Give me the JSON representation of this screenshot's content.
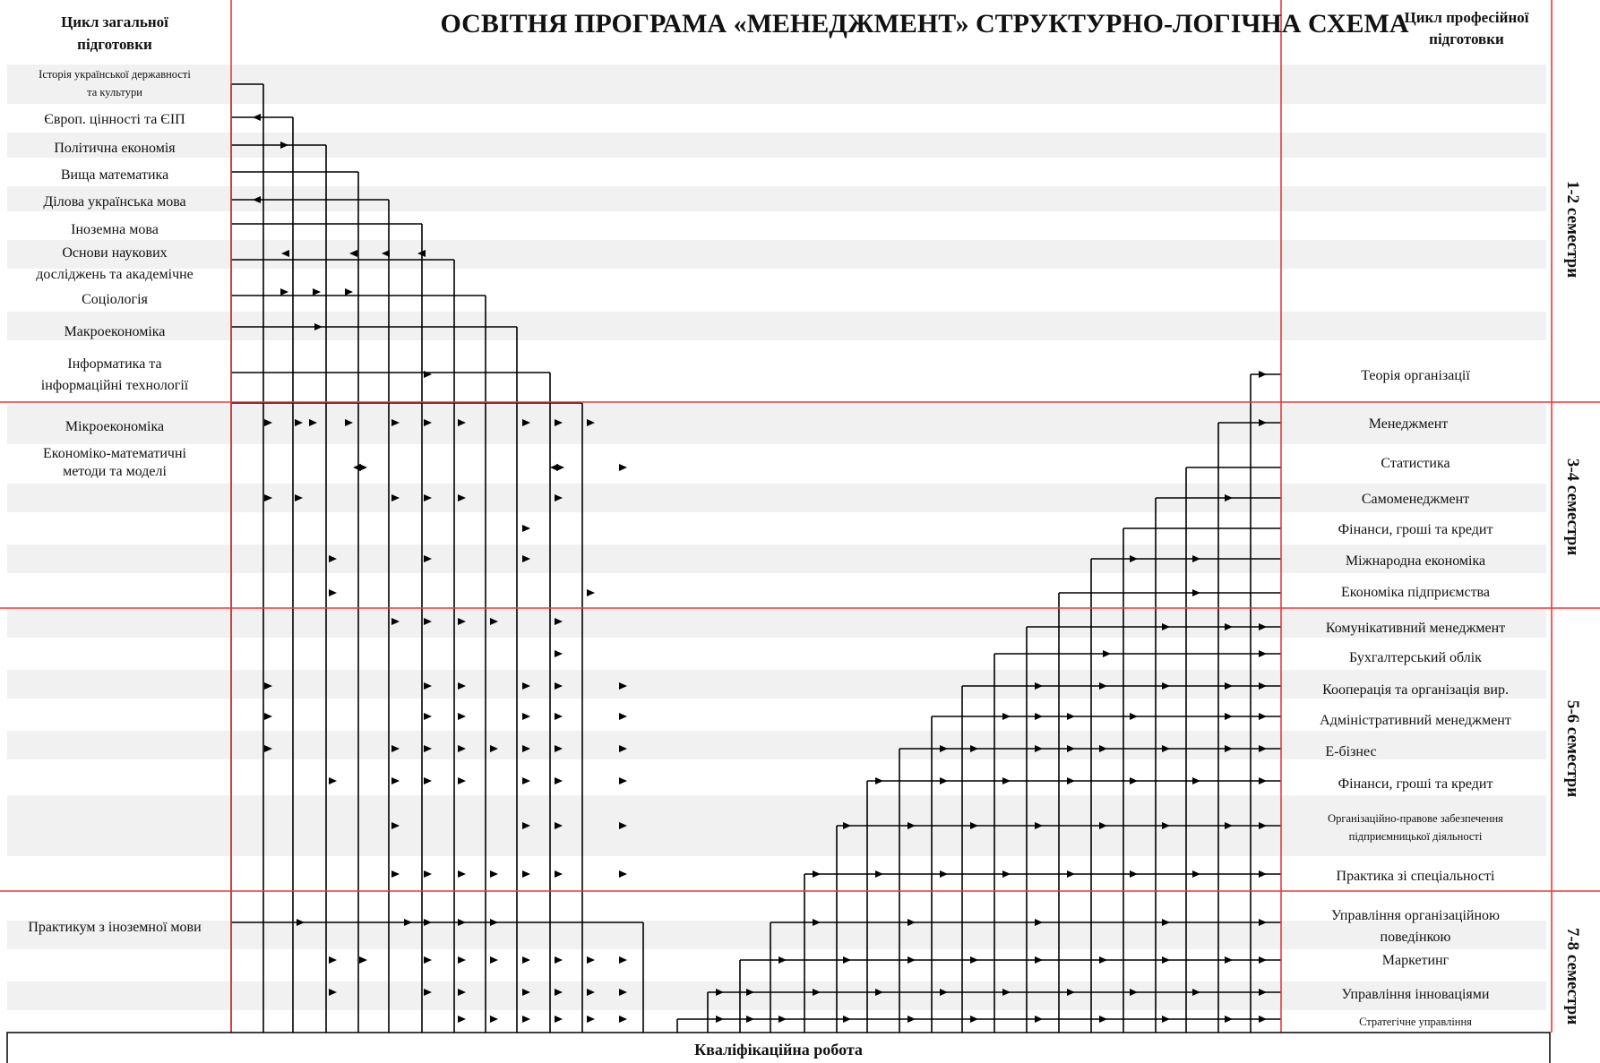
{
  "title": "ОСВІТНЯ ПРОГРАМА «МЕНЕДЖМЕНТ» СТРУКТУРНО-ЛОГІЧНА СХЕМА",
  "left_header": [
    "Цикл загальної",
    "підготовки"
  ],
  "right_header": [
    "Цикл професійної",
    "підготовки"
  ],
  "semesters": [
    "1-2 семестри",
    "3-4 семестри",
    "5-6 семестри",
    "7-8 семестри"
  ],
  "final_work": "Кваліфікаційна робота",
  "general_subjects": [
    [
      "Історія української державності",
      "та культури"
    ],
    [
      "Європ. цінності та  ЄІП"
    ],
    [
      "Політична економія"
    ],
    [
      "Вища математика"
    ],
    [
      "Ділова українська мова"
    ],
    [
      "Іноземна мова"
    ],
    [
      "Основи наукових",
      "досліджень та академічне"
    ],
    [
      "Соціологія"
    ],
    [
      "Макроекономіка"
    ],
    [
      "Інформатика та",
      "інформаційні технології"
    ],
    [
      "Мікроекономіка"
    ],
    [
      "Економіко-математичні",
      "методи та моделі"
    ],
    [
      "Практикум з іноземної мови"
    ]
  ],
  "professional_subjects": [
    [
      "Теорія організації"
    ],
    [
      "Менеджмент"
    ],
    [
      "Статистика"
    ],
    [
      "Самоменеджмент"
    ],
    [
      "Фінанси, гроші та кредит"
    ],
    [
      "Міжнародна економіка"
    ],
    [
      "Економіка підприємства"
    ],
    [
      "Комунікативний менеджмент"
    ],
    [
      "Бухгалтерський облік"
    ],
    [
      "Кооперація та організація  вир."
    ],
    [
      "Адміністративний менеджмент"
    ],
    [
      "Е-бізнес"
    ],
    [
      "Фінанси, гроші та кредит"
    ],
    [
      "Організаційно-правове забезпечення",
      "підприємницької діяльності"
    ],
    [
      "Практика зі спеціальності"
    ],
    [
      "Управління організаційною",
      "поведінкою"
    ],
    [
      "Маркетинг"
    ],
    [
      "Управління інноваціями"
    ],
    [
      "Стратегічне управління"
    ]
  ]
}
